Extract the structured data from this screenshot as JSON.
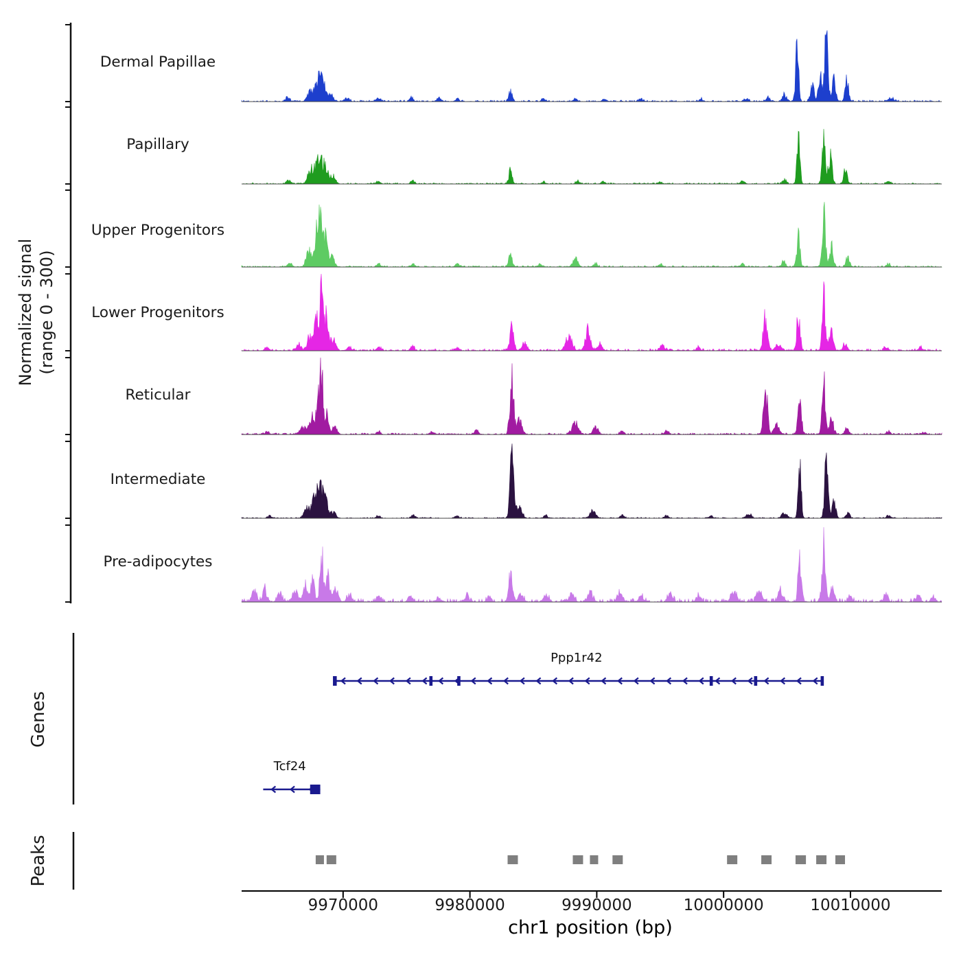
{
  "chart_data": {
    "type": "area",
    "title": "",
    "x_axis": {
      "label": "chr1 position (bp)",
      "domain": [
        9962000,
        10017200
      ],
      "ticks": [
        {
          "value": 9970000,
          "label": "9970000"
        },
        {
          "value": 9980000,
          "label": "9980000"
        },
        {
          "value": 9990000,
          "label": "9990000"
        },
        {
          "value": 10000000,
          "label": "10000000"
        },
        {
          "value": 10010000,
          "label": "10010000"
        }
      ]
    },
    "y_axis": {
      "label_line1": "Normalized signal",
      "label_line2": "(range 0 - 300)",
      "range": [
        0,
        300
      ]
    },
    "genes_section_label": "Genes",
    "peaks_section_label": "Peaks",
    "gene_color": "#1a1a8f",
    "peak_color": "#7f7f7f",
    "tracks": [
      {
        "name": "Dermal Papillae",
        "color": "#1d3fcd",
        "noise": 6,
        "peaks": [
          [
            9965600,
            18,
            150
          ],
          [
            9967400,
            40,
            200
          ],
          [
            9967900,
            75,
            150
          ],
          [
            9968200,
            90,
            120
          ],
          [
            9968500,
            60,
            150
          ],
          [
            9969000,
            30,
            200
          ],
          [
            9970300,
            12,
            200
          ],
          [
            9972800,
            15,
            150
          ],
          [
            9975400,
            20,
            120
          ],
          [
            9977500,
            15,
            150
          ],
          [
            9979000,
            10,
            150
          ],
          [
            9983200,
            40,
            130
          ],
          [
            9985800,
            10,
            150
          ],
          [
            9988300,
            10,
            150
          ],
          [
            9990600,
            12,
            150
          ],
          [
            9993500,
            10,
            150
          ],
          [
            9998200,
            10,
            150
          ],
          [
            10001800,
            12,
            150
          ],
          [
            10003500,
            15,
            150
          ],
          [
            10004800,
            30,
            150
          ],
          [
            10005800,
            210,
            120
          ],
          [
            10007000,
            60,
            150
          ],
          [
            10007600,
            120,
            120
          ],
          [
            10008100,
            300,
            130
          ],
          [
            10008700,
            90,
            140
          ],
          [
            10009700,
            100,
            130
          ],
          [
            10013200,
            15,
            200
          ]
        ]
      },
      {
        "name": "Papillary",
        "color": "#1f9c1f",
        "noise": 5,
        "peaks": [
          [
            9965700,
            15,
            150
          ],
          [
            9967500,
            60,
            250
          ],
          [
            9968100,
            120,
            200
          ],
          [
            9968600,
            70,
            200
          ],
          [
            9969200,
            30,
            200
          ],
          [
            9972800,
            10,
            150
          ],
          [
            9975500,
            12,
            150
          ],
          [
            9983200,
            55,
            130
          ],
          [
            9985800,
            8,
            150
          ],
          [
            9988500,
            10,
            150
          ],
          [
            9990500,
            10,
            150
          ],
          [
            9995000,
            8,
            150
          ],
          [
            10001500,
            10,
            150
          ],
          [
            10004800,
            15,
            150
          ],
          [
            10005900,
            170,
            120
          ],
          [
            10007900,
            180,
            130
          ],
          [
            10008400,
            120,
            140
          ],
          [
            10009600,
            55,
            130
          ],
          [
            10013000,
            10,
            150
          ]
        ]
      },
      {
        "name": "Upper Progenitors",
        "color": "#5ecb63",
        "noise": 6,
        "peaks": [
          [
            9965800,
            15,
            150
          ],
          [
            9967300,
            60,
            200
          ],
          [
            9967900,
            130,
            150
          ],
          [
            9968200,
            230,
            130
          ],
          [
            9968600,
            120,
            150
          ],
          [
            9969100,
            40,
            200
          ],
          [
            9972800,
            12,
            150
          ],
          [
            9975500,
            12,
            150
          ],
          [
            9979000,
            10,
            150
          ],
          [
            9983200,
            40,
            150
          ],
          [
            9985500,
            10,
            150
          ],
          [
            9988300,
            35,
            200
          ],
          [
            9989900,
            15,
            150
          ],
          [
            9995000,
            10,
            150
          ],
          [
            10001500,
            12,
            150
          ],
          [
            10004700,
            20,
            150
          ],
          [
            10005900,
            120,
            130
          ],
          [
            10007900,
            200,
            130
          ],
          [
            10008500,
            80,
            140
          ],
          [
            10009800,
            45,
            130
          ],
          [
            10013000,
            10,
            150
          ]
        ]
      },
      {
        "name": "Lower Progenitors",
        "color": "#e526e5",
        "noise": 8,
        "peaks": [
          [
            9964000,
            15,
            150
          ],
          [
            9966500,
            25,
            200
          ],
          [
            9967400,
            60,
            200
          ],
          [
            9967900,
            120,
            150
          ],
          [
            9968300,
            260,
            120
          ],
          [
            9968700,
            150,
            140
          ],
          [
            9969200,
            50,
            200
          ],
          [
            9970500,
            15,
            150
          ],
          [
            9972800,
            15,
            150
          ],
          [
            9975500,
            15,
            150
          ],
          [
            9979000,
            12,
            150
          ],
          [
            9983300,
            85,
            160
          ],
          [
            9984300,
            30,
            200
          ],
          [
            9987800,
            50,
            250
          ],
          [
            9989300,
            80,
            180
          ],
          [
            9990200,
            25,
            200
          ],
          [
            9995200,
            20,
            200
          ],
          [
            9998000,
            12,
            150
          ],
          [
            10003300,
            130,
            170
          ],
          [
            10004300,
            25,
            200
          ],
          [
            10005900,
            150,
            130
          ],
          [
            10007900,
            200,
            130
          ],
          [
            10008500,
            80,
            150
          ],
          [
            10009600,
            30,
            150
          ],
          [
            10012800,
            15,
            150
          ],
          [
            10015500,
            12,
            150
          ]
        ]
      },
      {
        "name": "Reticular",
        "color": "#a11ba1",
        "noise": 6,
        "peaks": [
          [
            9964000,
            12,
            150
          ],
          [
            9966800,
            30,
            200
          ],
          [
            9967500,
            70,
            200
          ],
          [
            9968000,
            140,
            140
          ],
          [
            9968300,
            230,
            120
          ],
          [
            9968700,
            90,
            150
          ],
          [
            9969300,
            30,
            200
          ],
          [
            9972800,
            12,
            150
          ],
          [
            9977000,
            10,
            150
          ],
          [
            9980500,
            15,
            150
          ],
          [
            9983300,
            220,
            150
          ],
          [
            9983900,
            60,
            200
          ],
          [
            9988300,
            45,
            250
          ],
          [
            9989900,
            30,
            200
          ],
          [
            9992000,
            15,
            150
          ],
          [
            9995500,
            15,
            150
          ],
          [
            10003300,
            180,
            160
          ],
          [
            10004200,
            40,
            200
          ],
          [
            10006000,
            150,
            130
          ],
          [
            10007900,
            210,
            130
          ],
          [
            10008500,
            70,
            150
          ],
          [
            10009700,
            25,
            150
          ],
          [
            10013000,
            12,
            150
          ],
          [
            10015800,
            10,
            150
          ]
        ]
      },
      {
        "name": "Intermediate",
        "color": "#2b1240",
        "noise": 4,
        "peaks": [
          [
            9964200,
            10,
            150
          ],
          [
            9967200,
            40,
            250
          ],
          [
            9967800,
            100,
            180
          ],
          [
            9968200,
            130,
            150
          ],
          [
            9968600,
            80,
            180
          ],
          [
            9969200,
            25,
            200
          ],
          [
            9972800,
            10,
            150
          ],
          [
            9975500,
            12,
            150
          ],
          [
            9979000,
            10,
            150
          ],
          [
            9983300,
            230,
            150
          ],
          [
            9983900,
            50,
            200
          ],
          [
            9986000,
            10,
            150
          ],
          [
            9989700,
            35,
            200
          ],
          [
            9992000,
            12,
            150
          ],
          [
            9995500,
            10,
            150
          ],
          [
            9999000,
            10,
            150
          ],
          [
            10002000,
            18,
            200
          ],
          [
            10004800,
            20,
            200
          ],
          [
            10006000,
            200,
            120
          ],
          [
            10008100,
            230,
            130
          ],
          [
            10008700,
            60,
            150
          ],
          [
            10009800,
            20,
            150
          ],
          [
            10013000,
            10,
            150
          ]
        ]
      },
      {
        "name": "Pre-adipocytes",
        "color": "#c879e8",
        "noise": 14,
        "peaks": [
          [
            9963000,
            40,
            200
          ],
          [
            9963800,
            55,
            150
          ],
          [
            9965000,
            30,
            200
          ],
          [
            9966200,
            50,
            180
          ],
          [
            9967000,
            60,
            180
          ],
          [
            9967600,
            90,
            150
          ],
          [
            9968300,
            200,
            130
          ],
          [
            9968800,
            110,
            150
          ],
          [
            9969400,
            50,
            200
          ],
          [
            9970500,
            25,
            200
          ],
          [
            9972800,
            20,
            150
          ],
          [
            9975300,
            30,
            150
          ],
          [
            9977500,
            20,
            150
          ],
          [
            9979800,
            25,
            150
          ],
          [
            9981500,
            20,
            150
          ],
          [
            9983200,
            110,
            140
          ],
          [
            9984000,
            30,
            200
          ],
          [
            9986000,
            25,
            200
          ],
          [
            9988000,
            30,
            200
          ],
          [
            9989500,
            35,
            200
          ],
          [
            9991800,
            35,
            200
          ],
          [
            9993500,
            20,
            200
          ],
          [
            9995800,
            25,
            200
          ],
          [
            9998000,
            20,
            200
          ],
          [
            10000800,
            45,
            200
          ],
          [
            10002800,
            50,
            200
          ],
          [
            10004500,
            40,
            200
          ],
          [
            10006000,
            180,
            130
          ],
          [
            10007900,
            230,
            130
          ],
          [
            10008600,
            70,
            150
          ],
          [
            10010000,
            25,
            150
          ],
          [
            10012800,
            30,
            150
          ],
          [
            10015300,
            25,
            150
          ],
          [
            10016500,
            20,
            150
          ]
        ]
      }
    ],
    "genes": [
      {
        "name": "Ppp1r42",
        "strand": "-",
        "start": 9969300,
        "end": 10007800,
        "label_bp": 9988400,
        "exons": [
          [
            9969200,
            9969500
          ],
          [
            9976800,
            9977050
          ],
          [
            9979000,
            9979250
          ],
          [
            9998900,
            9999150
          ],
          [
            10002400,
            10002650
          ],
          [
            10007650,
            10007900
          ]
        ]
      },
      {
        "name": "Tcf24",
        "strand": "-",
        "start": 9963700,
        "end": 9968200,
        "label_bp": 9965800,
        "exons": [
          [
            9967400,
            9968200
          ]
        ]
      }
    ],
    "peak_regions": [
      [
        9967840,
        9968490
      ],
      [
        9968700,
        9969460
      ],
      [
        9982970,
        9983780
      ],
      [
        9988110,
        9988920
      ],
      [
        9989460,
        9990110
      ],
      [
        9991240,
        9992050
      ],
      [
        10000270,
        10001080
      ],
      [
        10002970,
        10003780
      ],
      [
        10005670,
        10006490
      ],
      [
        10007300,
        10008110
      ],
      [
        10008810,
        10009570
      ]
    ]
  }
}
